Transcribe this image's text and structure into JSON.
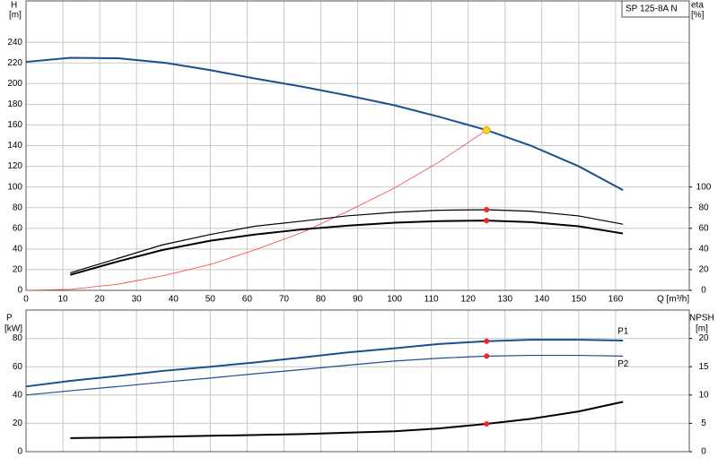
{
  "chart_data": [
    {
      "type": "line",
      "title": "SP 125-8A N",
      "ylabel": "H",
      "yunit": "[m]",
      "y2label": "eta",
      "y2unit": "[%]",
      "xlabel": "Q [m³/h]",
      "xlim": [
        0,
        180
      ],
      "xticks": [
        0,
        10,
        20,
        30,
        40,
        50,
        60,
        70,
        80,
        90,
        100,
        110,
        120,
        130,
        140,
        150,
        160
      ],
      "ylim": [
        0,
        280
      ],
      "yticks": [
        0,
        20,
        40,
        60,
        80,
        100,
        120,
        140,
        160,
        180,
        200,
        220,
        240
      ],
      "y2lim": [
        0,
        280
      ],
      "y2ticks": [
        0,
        20,
        40,
        60,
        80,
        100
      ],
      "grid": true,
      "series": [
        {
          "color": "#1a4f8f",
          "width": 2,
          "x": [
            0,
            12,
            25,
            38,
            50,
            62,
            75,
            88,
            100,
            112,
            125,
            137,
            150,
            162
          ],
          "values": [
            221,
            225,
            224.5,
            220,
            213,
            205,
            197,
            188,
            179,
            168,
            155,
            140,
            120,
            97
          ]
        },
        {
          "color": "#ff3b3b",
          "width": 0.8,
          "x": [
            0,
            12,
            25,
            37,
            50,
            62,
            75,
            87,
            100,
            112,
            125
          ],
          "values": [
            0,
            1,
            6,
            14,
            25,
            39,
            56,
            76,
            99,
            124,
            155
          ]
        },
        {
          "color": "#000000",
          "width": 1.2,
          "axis": "y2",
          "x": [
            12,
            25,
            37,
            50,
            62,
            75,
            87,
            100,
            112,
            125,
            137,
            150,
            162
          ],
          "values": [
            17,
            31,
            44,
            54,
            62,
            67,
            72,
            75.5,
            77.5,
            78,
            76.5,
            72,
            64
          ]
        },
        {
          "color": "#000000",
          "width": 2,
          "axis": "y2",
          "x": [
            12,
            25,
            37,
            50,
            62,
            75,
            87,
            100,
            112,
            125,
            137,
            150,
            162
          ],
          "values": [
            15,
            28,
            39,
            48,
            54,
            59,
            62.5,
            65.5,
            67,
            67.5,
            66,
            62,
            55
          ]
        }
      ],
      "points": [
        {
          "x": 125,
          "y": 155,
          "color": "#ffd21f"
        },
        {
          "x": 125,
          "y": 78,
          "color": "#ff2020",
          "axis": "y2"
        },
        {
          "x": 125,
          "y": 67.5,
          "color": "#ff2020",
          "axis": "y2"
        }
      ]
    },
    {
      "type": "line",
      "ylabel": "P",
      "yunit": "[kW]",
      "y2label": "NPSH",
      "y2unit": "[m]",
      "xlim": [
        0,
        180
      ],
      "xticks": [
        0,
        10,
        20,
        30,
        40,
        50,
        60,
        70,
        80,
        90,
        100,
        110,
        120,
        130,
        140,
        150,
        160
      ],
      "ylim": [
        0,
        100
      ],
      "yticks": [
        0,
        20,
        40,
        60,
        80
      ],
      "y2lim": [
        0,
        25
      ],
      "y2ticks": [
        0,
        5,
        10,
        15,
        20
      ],
      "grid": true,
      "series": [
        {
          "name": "P1",
          "color": "#1a4f8f",
          "width": 2,
          "x": [
            0,
            12,
            25,
            37,
            50,
            62,
            75,
            87,
            100,
            112,
            125,
            137,
            150,
            162
          ],
          "values": [
            46,
            50,
            53.5,
            57,
            60,
            63,
            66.5,
            70,
            73,
            76,
            78,
            79,
            79,
            78.5
          ]
        },
        {
          "name": "P2",
          "color": "#1a4f8f",
          "width": 1.2,
          "x": [
            0,
            12,
            25,
            37,
            50,
            62,
            75,
            87,
            100,
            112,
            125,
            137,
            150,
            162
          ],
          "values": [
            40,
            43,
            46,
            49,
            52,
            55,
            58,
            61,
            64,
            66,
            67.5,
            68,
            68,
            67.5
          ]
        },
        {
          "color": "#000000",
          "width": 2,
          "axis": "y2",
          "x": [
            12,
            25,
            50,
            75,
            100,
            112,
            125,
            137,
            150,
            162
          ],
          "values": [
            2.4,
            2.5,
            2.8,
            3.1,
            3.6,
            4.1,
            4.9,
            5.8,
            7.1,
            8.8
          ]
        }
      ],
      "points": [
        {
          "x": 125,
          "y": 78,
          "color": "#ff2020"
        },
        {
          "x": 125,
          "y": 67.5,
          "color": "#ff2020"
        },
        {
          "x": 125,
          "y": 4.9,
          "color": "#ff2020",
          "axis": "y2"
        }
      ]
    }
  ]
}
